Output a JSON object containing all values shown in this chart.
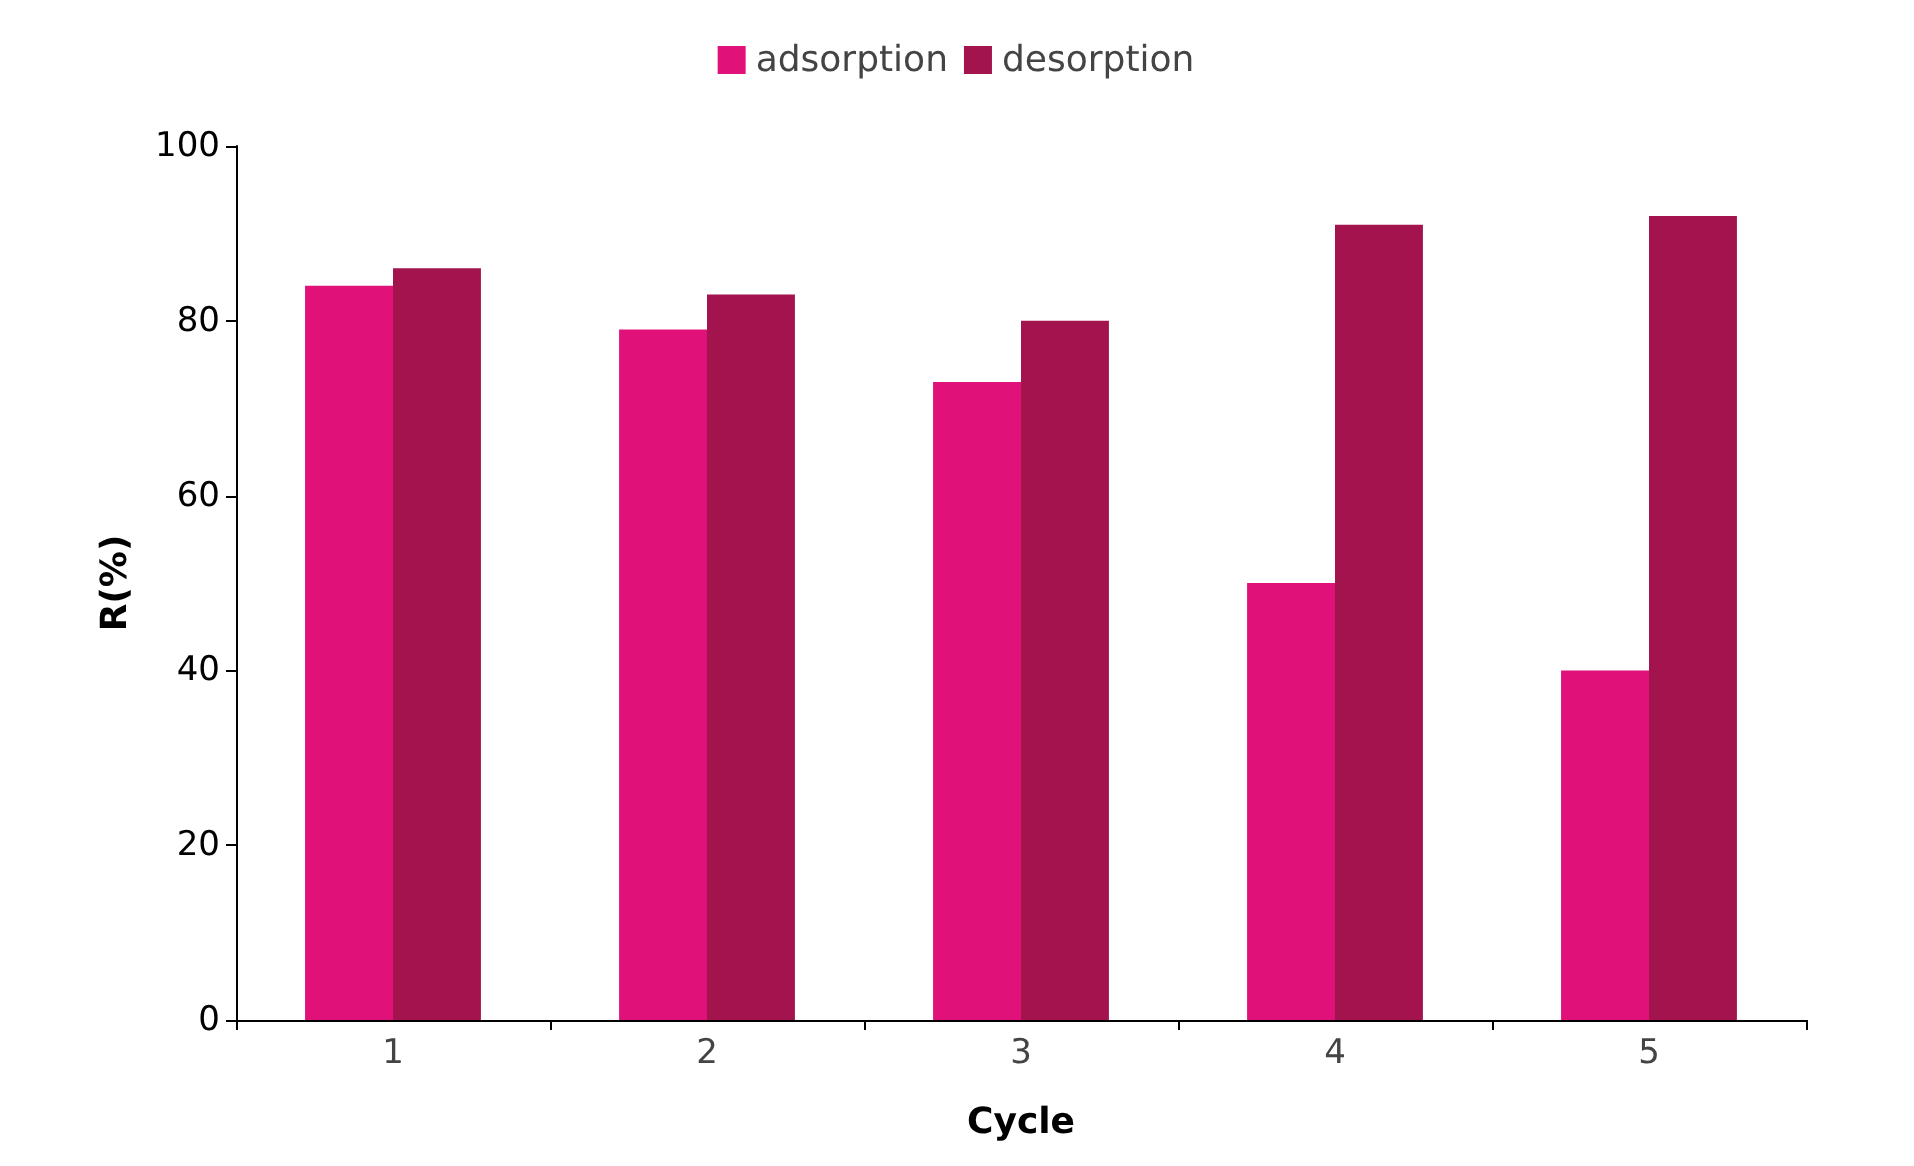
{
  "chart_data": {
    "type": "bar",
    "xlabel": "Cycle",
    "ylabel": "R(%)",
    "categories": [
      "1",
      "2",
      "3",
      "4",
      "5"
    ],
    "series": [
      {
        "name": "adsorption",
        "color": "#e0127a",
        "values": [
          84,
          79,
          73,
          50,
          40
        ]
      },
      {
        "name": "desorption",
        "color": "#a3134e",
        "values": [
          86,
          83,
          80,
          91,
          92
        ]
      }
    ],
    "ylim": [
      0,
      100
    ],
    "yticks": [
      0,
      20,
      40,
      60,
      80,
      100
    ],
    "grid": false,
    "legend": "top"
  }
}
